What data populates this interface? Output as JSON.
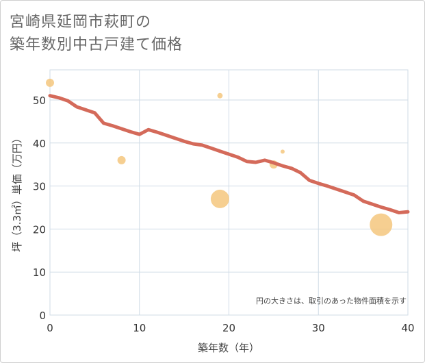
{
  "title": {
    "line1": "宮崎県延岡市萩町の",
    "line2": "築年数別中古戸建て価格"
  },
  "chart_data": {
    "type": "scatter",
    "title": "宮崎県延岡市萩町の築年数別中古戸建て価格",
    "xlabel": "築年数（年）",
    "ylabel": "坪（3.3㎡）単価（万円）",
    "xlim": [
      0,
      40
    ],
    "ylim": [
      0,
      57
    ],
    "xticks": [
      0,
      10,
      20,
      30,
      40
    ],
    "yticks": [
      0,
      10,
      20,
      30,
      40,
      50
    ],
    "grid": true,
    "annotation": "円の大きさは、取引のあった物件面積を示す",
    "colors": {
      "points": "#f5c77e",
      "trend": "#d46a5a",
      "grid": "#cfdbe6",
      "frame": "#cfcfcf"
    },
    "points": [
      {
        "x": 0,
        "y": 54,
        "size": 2
      },
      {
        "x": 8,
        "y": 36,
        "size": 2
      },
      {
        "x": 19,
        "y": 51,
        "size": 1.3
      },
      {
        "x": 19,
        "y": 27,
        "size": 4.5
      },
      {
        "x": 25,
        "y": 35,
        "size": 2
      },
      {
        "x": 26,
        "y": 38,
        "size": 1
      },
      {
        "x": 37,
        "y": 21,
        "size": 5.5
      }
    ],
    "trend": {
      "x": [
        0,
        1,
        2,
        3,
        4,
        5,
        6,
        7,
        8,
        9,
        10,
        11,
        12,
        13,
        14,
        15,
        16,
        17,
        18,
        19,
        20,
        21,
        22,
        23,
        24,
        25,
        26,
        27,
        28,
        29,
        30,
        31,
        32,
        33,
        34,
        35,
        36,
        37,
        38,
        39,
        40
      ],
      "y": [
        51,
        50.5,
        49.8,
        48.4,
        47.7,
        47.0,
        44.6,
        44.0,
        43.3,
        42.6,
        42.0,
        43.1,
        42.5,
        41.8,
        41.1,
        40.4,
        39.8,
        39.5,
        38.8,
        38.1,
        37.4,
        36.7,
        35.7,
        35.5,
        36.0,
        35.4,
        34.7,
        34.1,
        33.1,
        31.3,
        30.6,
        30.0,
        29.3,
        28.6,
        27.9,
        26.5,
        25.8,
        25.1,
        24.5,
        23.8,
        24.0
      ]
    }
  }
}
